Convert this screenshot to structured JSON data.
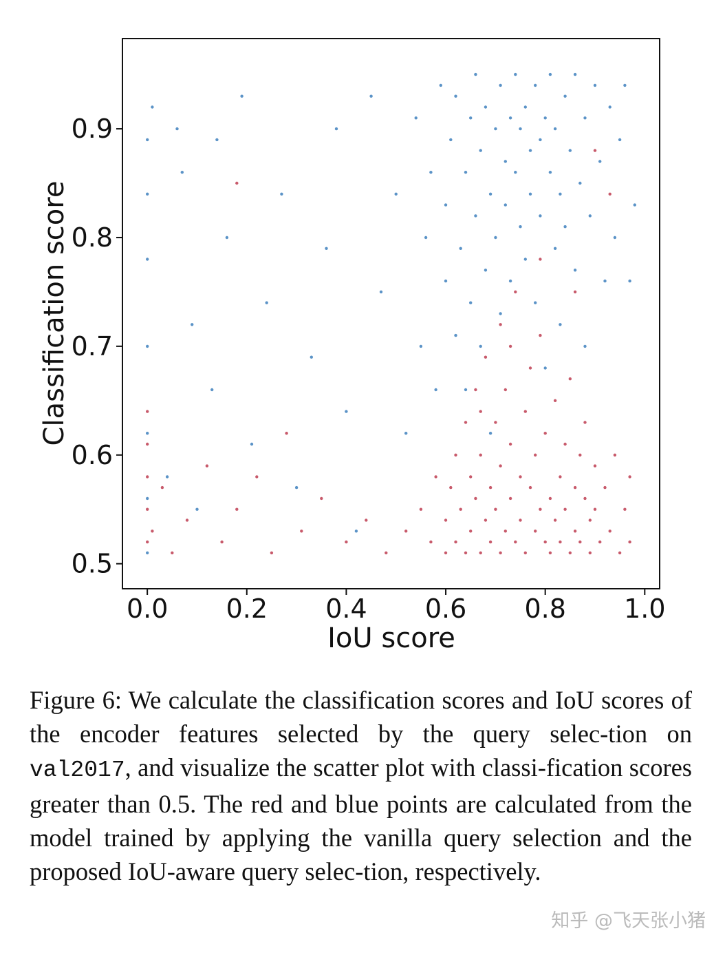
{
  "chart_data": {
    "type": "scatter",
    "title": "",
    "xlabel": "IoU score",
    "ylabel": "Classification score",
    "xlim": [
      -0.05,
      1.03
    ],
    "ylim": [
      0.477,
      0.983
    ],
    "x_ticks": [
      "0.0",
      "0.2",
      "0.4",
      "0.6",
      "0.8",
      "1.0"
    ],
    "y_ticks": [
      "0.5",
      "0.6",
      "0.7",
      "0.8",
      "0.9"
    ],
    "grid": false,
    "legend": "none",
    "series": [
      {
        "color": "#c85a6b",
        "description_colour": "red",
        "points": [
          [
            0.0,
            0.52
          ],
          [
            0.0,
            0.55
          ],
          [
            0.0,
            0.58
          ],
          [
            0.0,
            0.61
          ],
          [
            0.0,
            0.64
          ],
          [
            0.01,
            0.53
          ],
          [
            0.03,
            0.57
          ],
          [
            0.05,
            0.51
          ],
          [
            0.08,
            0.54
          ],
          [
            0.12,
            0.59
          ],
          [
            0.15,
            0.52
          ],
          [
            0.18,
            0.85
          ],
          [
            0.18,
            0.55
          ],
          [
            0.22,
            0.58
          ],
          [
            0.25,
            0.51
          ],
          [
            0.28,
            0.62
          ],
          [
            0.31,
            0.53
          ],
          [
            0.35,
            0.56
          ],
          [
            0.4,
            0.52
          ],
          [
            0.44,
            0.54
          ],
          [
            0.48,
            0.51
          ],
          [
            0.52,
            0.53
          ],
          [
            0.55,
            0.55
          ],
          [
            0.57,
            0.52
          ],
          [
            0.58,
            0.58
          ],
          [
            0.6,
            0.51
          ],
          [
            0.6,
            0.54
          ],
          [
            0.61,
            0.57
          ],
          [
            0.62,
            0.6
          ],
          [
            0.62,
            0.52
          ],
          [
            0.63,
            0.55
          ],
          [
            0.64,
            0.63
          ],
          [
            0.64,
            0.51
          ],
          [
            0.65,
            0.58
          ],
          [
            0.65,
            0.53
          ],
          [
            0.66,
            0.66
          ],
          [
            0.66,
            0.56
          ],
          [
            0.67,
            0.51
          ],
          [
            0.67,
            0.6
          ],
          [
            0.68,
            0.54
          ],
          [
            0.68,
            0.69
          ],
          [
            0.69,
            0.57
          ],
          [
            0.69,
            0.52
          ],
          [
            0.7,
            0.63
          ],
          [
            0.7,
            0.55
          ],
          [
            0.71,
            0.72
          ],
          [
            0.71,
            0.51
          ],
          [
            0.71,
            0.59
          ],
          [
            0.72,
            0.53
          ],
          [
            0.72,
            0.66
          ],
          [
            0.73,
            0.56
          ],
          [
            0.73,
            0.61
          ],
          [
            0.74,
            0.52
          ],
          [
            0.74,
            0.75
          ],
          [
            0.75,
            0.58
          ],
          [
            0.75,
            0.54
          ],
          [
            0.76,
            0.64
          ],
          [
            0.76,
            0.51
          ],
          [
            0.77,
            0.57
          ],
          [
            0.77,
            0.68
          ],
          [
            0.78,
            0.53
          ],
          [
            0.78,
            0.6
          ],
          [
            0.79,
            0.55
          ],
          [
            0.79,
            0.71
          ],
          [
            0.8,
            0.52
          ],
          [
            0.8,
            0.62
          ],
          [
            0.81,
            0.56
          ],
          [
            0.81,
            0.51
          ],
          [
            0.82,
            0.65
          ],
          [
            0.82,
            0.54
          ],
          [
            0.83,
            0.58
          ],
          [
            0.83,
            0.52
          ],
          [
            0.84,
            0.61
          ],
          [
            0.84,
            0.55
          ],
          [
            0.85,
            0.51
          ],
          [
            0.85,
            0.67
          ],
          [
            0.86,
            0.57
          ],
          [
            0.86,
            0.53
          ],
          [
            0.87,
            0.6
          ],
          [
            0.87,
            0.52
          ],
          [
            0.88,
            0.56
          ],
          [
            0.88,
            0.63
          ],
          [
            0.89,
            0.54
          ],
          [
            0.89,
            0.51
          ],
          [
            0.9,
            0.59
          ],
          [
            0.9,
            0.55
          ],
          [
            0.91,
            0.52
          ],
          [
            0.92,
            0.57
          ],
          [
            0.93,
            0.53
          ],
          [
            0.94,
            0.6
          ],
          [
            0.95,
            0.51
          ],
          [
            0.96,
            0.55
          ],
          [
            0.97,
            0.52
          ],
          [
            0.97,
            0.58
          ],
          [
            0.9,
            0.88
          ],
          [
            0.93,
            0.84
          ],
          [
            0.86,
            0.75
          ],
          [
            0.79,
            0.78
          ],
          [
            0.73,
            0.7
          ],
          [
            0.67,
            0.64
          ]
        ]
      },
      {
        "color": "#5b93c7",
        "description_colour": "blue",
        "points": [
          [
            0.0,
            0.51
          ],
          [
            0.0,
            0.56
          ],
          [
            0.0,
            0.62
          ],
          [
            0.0,
            0.7
          ],
          [
            0.0,
            0.78
          ],
          [
            0.0,
            0.84
          ],
          [
            0.0,
            0.89
          ],
          [
            0.01,
            0.92
          ],
          [
            0.04,
            0.58
          ],
          [
            0.06,
            0.9
          ],
          [
            0.07,
            0.86
          ],
          [
            0.09,
            0.72
          ],
          [
            0.1,
            0.55
          ],
          [
            0.13,
            0.66
          ],
          [
            0.14,
            0.89
          ],
          [
            0.16,
            0.8
          ],
          [
            0.19,
            0.93
          ],
          [
            0.21,
            0.61
          ],
          [
            0.24,
            0.74
          ],
          [
            0.27,
            0.84
          ],
          [
            0.3,
            0.57
          ],
          [
            0.33,
            0.69
          ],
          [
            0.36,
            0.79
          ],
          [
            0.38,
            0.9
          ],
          [
            0.4,
            0.64
          ],
          [
            0.42,
            0.53
          ],
          [
            0.45,
            0.93
          ],
          [
            0.47,
            0.75
          ],
          [
            0.5,
            0.84
          ],
          [
            0.52,
            0.62
          ],
          [
            0.54,
            0.91
          ],
          [
            0.55,
            0.7
          ],
          [
            0.56,
            0.8
          ],
          [
            0.57,
            0.86
          ],
          [
            0.58,
            0.66
          ],
          [
            0.59,
            0.94
          ],
          [
            0.6,
            0.76
          ],
          [
            0.6,
            0.83
          ],
          [
            0.61,
            0.89
          ],
          [
            0.62,
            0.71
          ],
          [
            0.62,
            0.93
          ],
          [
            0.63,
            0.79
          ],
          [
            0.64,
            0.86
          ],
          [
            0.64,
            0.66
          ],
          [
            0.65,
            0.91
          ],
          [
            0.65,
            0.74
          ],
          [
            0.66,
            0.82
          ],
          [
            0.66,
            0.95
          ],
          [
            0.67,
            0.88
          ],
          [
            0.67,
            0.7
          ],
          [
            0.68,
            0.77
          ],
          [
            0.68,
            0.92
          ],
          [
            0.69,
            0.84
          ],
          [
            0.69,
            0.62
          ],
          [
            0.7,
            0.9
          ],
          [
            0.7,
            0.8
          ],
          [
            0.71,
            0.94
          ],
          [
            0.71,
            0.73
          ],
          [
            0.72,
            0.87
          ],
          [
            0.72,
            0.83
          ],
          [
            0.73,
            0.91
          ],
          [
            0.73,
            0.76
          ],
          [
            0.74,
            0.95
          ],
          [
            0.74,
            0.86
          ],
          [
            0.75,
            0.81
          ],
          [
            0.75,
            0.9
          ],
          [
            0.76,
            0.92
          ],
          [
            0.76,
            0.78
          ],
          [
            0.77,
            0.88
          ],
          [
            0.77,
            0.84
          ],
          [
            0.78,
            0.94
          ],
          [
            0.78,
            0.74
          ],
          [
            0.79,
            0.89
          ],
          [
            0.79,
            0.82
          ],
          [
            0.8,
            0.91
          ],
          [
            0.8,
            0.68
          ],
          [
            0.81,
            0.86
          ],
          [
            0.81,
            0.95
          ],
          [
            0.82,
            0.79
          ],
          [
            0.82,
            0.9
          ],
          [
            0.83,
            0.84
          ],
          [
            0.83,
            0.72
          ],
          [
            0.84,
            0.93
          ],
          [
            0.84,
            0.81
          ],
          [
            0.85,
            0.88
          ],
          [
            0.86,
            0.77
          ],
          [
            0.86,
            0.95
          ],
          [
            0.87,
            0.85
          ],
          [
            0.88,
            0.91
          ],
          [
            0.88,
            0.7
          ],
          [
            0.89,
            0.82
          ],
          [
            0.9,
            0.94
          ],
          [
            0.91,
            0.87
          ],
          [
            0.92,
            0.76
          ],
          [
            0.93,
            0.92
          ],
          [
            0.94,
            0.8
          ],
          [
            0.95,
            0.89
          ],
          [
            0.96,
            0.94
          ],
          [
            0.97,
            0.76
          ],
          [
            0.98,
            0.83
          ]
        ]
      }
    ]
  },
  "caption": {
    "part1": "Figure 6:  We calculate the classification scores and IoU scores of the encoder features selected by the query selec-tion on ",
    "code": "val2017",
    "part2": ", and visualize the scatter plot with classi-fication scores greater than ",
    "threshold": "0.5",
    "part3": ". The red and blue points are calculated from the model trained by applying the vanilla query selection and the proposed IoU-aware query selec-tion, respectively."
  },
  "watermark": "知乎 @飞天张小猪"
}
